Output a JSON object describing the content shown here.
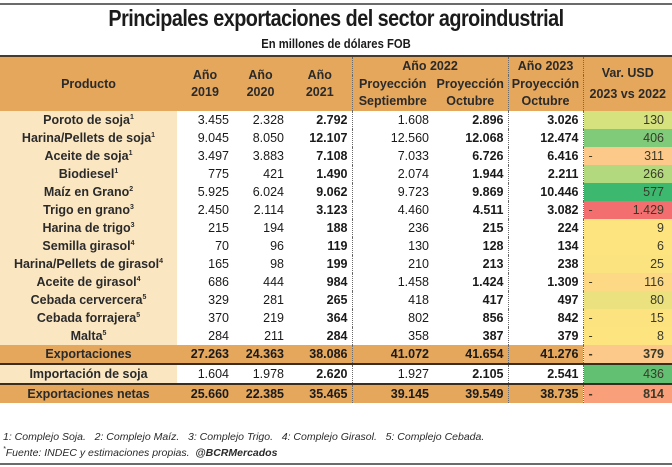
{
  "title": "Principales exportaciones del sector agroindustrial",
  "subtitle": "En millones de dólares FOB",
  "header": {
    "product": "Producto",
    "y2019": [
      "Año",
      "2019"
    ],
    "y2020": [
      "Año",
      "2020"
    ],
    "y2021": [
      "Año",
      "2021"
    ],
    "y2022_group": "Año 2022",
    "y2022_sep": [
      "Proyección",
      "Septiembre"
    ],
    "y2022_oct": [
      "Proyección",
      "Octubre"
    ],
    "y2023_group": "Año 2023",
    "y2023_oct": [
      "Proyección",
      "Octubre"
    ],
    "var": [
      "Var. USD",
      "2023 vs 2022"
    ]
  },
  "rows": [
    {
      "product": "Poroto de soja",
      "note": "1",
      "y2019": "3.455",
      "y2020": "2.328",
      "y2021": "2.792",
      "sep2022": "1.608",
      "oct2022": "2.896",
      "oct2023": "3.026",
      "var_sign": "",
      "var": "130",
      "var_color": "#d6e27e"
    },
    {
      "product": "Harina/Pellets de soja",
      "note": "1",
      "y2019": "9.045",
      "y2020": "8.050",
      "y2021": "12.107",
      "sep2022": "12.560",
      "oct2022": "12.068",
      "oct2023": "12.474",
      "var_sign": "",
      "var": "406",
      "var_color": "#7fcb7a"
    },
    {
      "product": "Aceite de soja",
      "note": "1",
      "y2019": "3.497",
      "y2020": "3.883",
      "y2021": "7.108",
      "sep2022": "7.033",
      "oct2022": "6.726",
      "oct2023": "6.416",
      "var_sign": "-",
      "var": "311",
      "var_color": "#fcc98a"
    },
    {
      "product": "Biodiesel",
      "note": "1",
      "y2019": "775",
      "y2020": "421",
      "y2021": "1.490",
      "sep2022": "2.074",
      "oct2022": "1.944",
      "oct2023": "2.211",
      "var_sign": "",
      "var": "266",
      "var_color": "#b3d97f"
    },
    {
      "product": "Maíz en Grano",
      "note": "2",
      "y2019": "5.925",
      "y2020": "6.024",
      "y2021": "9.062",
      "sep2022": "9.723",
      "oct2022": "9.869",
      "oct2023": "10.446",
      "var_sign": "",
      "var": "577",
      "var_color": "#3cb86f"
    },
    {
      "product": "Trigo en grano",
      "note": "3",
      "y2019": "2.450",
      "y2020": "2.114",
      "y2021": "3.123",
      "sep2022": "4.460",
      "oct2022": "4.511",
      "oct2023": "3.082",
      "var_sign": "-",
      "var": "1.429",
      "var_color": "#f36e6e"
    },
    {
      "product": "Harina de trigo",
      "note": "3",
      "y2019": "215",
      "y2020": "194",
      "y2021": "188",
      "sep2022": "236",
      "oct2022": "215",
      "oct2023": "224",
      "var_sign": "",
      "var": "9",
      "var_color": "#fde47f"
    },
    {
      "product": "Semilla girasol",
      "note": "4",
      "y2019": "70",
      "y2020": "96",
      "y2021": "119",
      "sep2022": "130",
      "oct2022": "128",
      "oct2023": "134",
      "var_sign": "",
      "var": "6",
      "var_color": "#fde47f"
    },
    {
      "product": "Harina/Pellets de girasol",
      "note": "4",
      "y2019": "165",
      "y2020": "98",
      "y2021": "199",
      "sep2022": "210",
      "oct2022": "213",
      "oct2023": "238",
      "var_sign": "",
      "var": "25",
      "var_color": "#fbe480"
    },
    {
      "product": "Aceite de girasol",
      "note": "4",
      "y2019": "686",
      "y2020": "444",
      "y2021": "984",
      "sep2022": "1.458",
      "oct2022": "1.424",
      "oct2023": "1.309",
      "var_sign": "-",
      "var": "116",
      "var_color": "#fdd985"
    },
    {
      "product": "Cebada cervercera",
      "note": "5",
      "y2019": "329",
      "y2020": "281",
      "y2021": "265",
      "sep2022": "418",
      "oct2022": "417",
      "oct2023": "497",
      "var_sign": "",
      "var": "80",
      "var_color": "#ebe27f"
    },
    {
      "product": "Cebada forrajera",
      "note": "5",
      "y2019": "370",
      "y2020": "219",
      "y2021": "364",
      "sep2022": "802",
      "oct2022": "856",
      "oct2023": "842",
      "var_sign": "-",
      "var": "15",
      "var_color": "#fde380"
    },
    {
      "product": "Malta",
      "note": "5",
      "y2019": "284",
      "y2020": "211",
      "y2021": "284",
      "sep2022": "358",
      "oct2022": "387",
      "oct2023": "379",
      "var_sign": "-",
      "var": "8",
      "var_color": "#fde47f"
    }
  ],
  "total": {
    "product": "Exportaciones",
    "y2019": "27.263",
    "y2020": "24.363",
    "y2021": "38.086",
    "sep2022": "41.072",
    "oct2022": "41.654",
    "oct2023": "41.276",
    "var_sign": "-",
    "var": "379",
    "var_color": "#fcc98a"
  },
  "import": {
    "product": "Importación de soja",
    "y2019": "1.604",
    "y2020": "1.978",
    "y2021": "2.620",
    "sep2022": "1.927",
    "oct2022": "2.105",
    "oct2023": "2.541",
    "var_sign": "",
    "var": "436",
    "var_color": "#62c073"
  },
  "net": {
    "product": "Exportaciones netas",
    "y2019": "25.660",
    "y2020": "22.385",
    "y2021": "35.465",
    "sep2022": "39.145",
    "oct2022": "39.549",
    "oct2023": "38.735",
    "var_sign": "-",
    "var": "814",
    "var_color": "#f9a07a"
  },
  "footnotes": {
    "notes": "1: Complejo Soja.   2: Complejo Maíz.   3: Complejo Trigo.   4: Complejo Girasol.   5: Complejo Cebada.",
    "source": "Fuente: INDEC y estimaciones propias.",
    "handle": "@BCRMercados"
  }
}
